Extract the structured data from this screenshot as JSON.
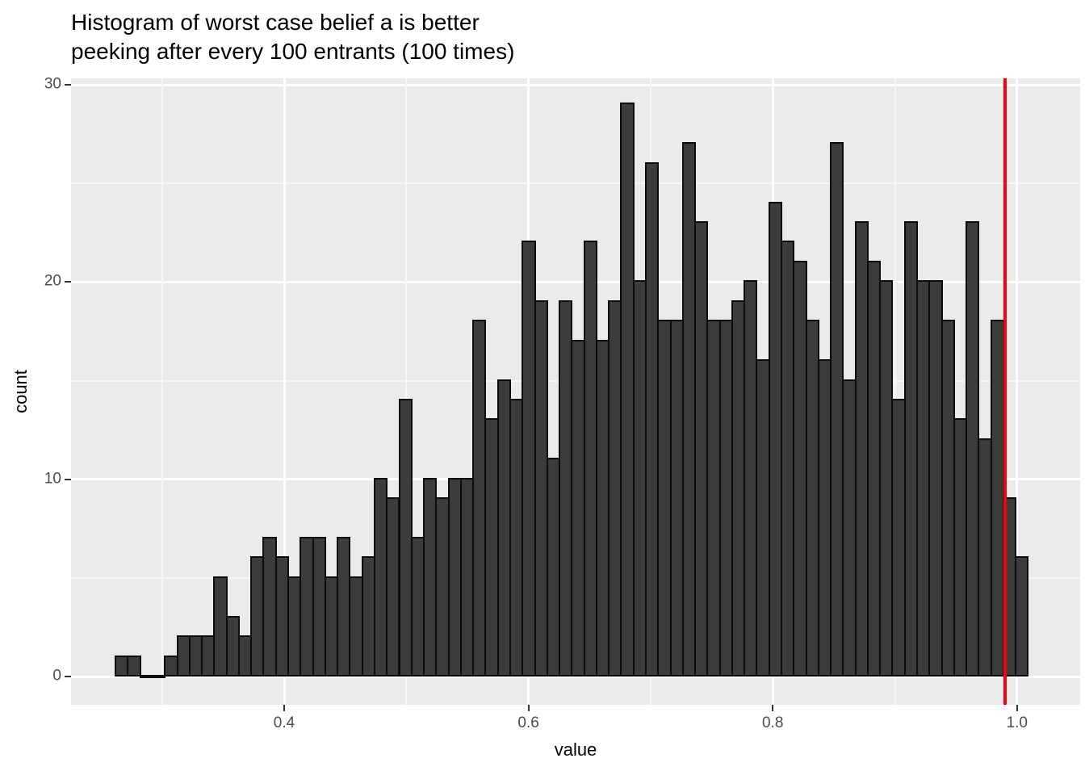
{
  "title": {
    "line1": "Histogram of worst case belief a is better",
    "line2": "peeking after every 100 entrants (100 times)"
  },
  "chart_data": {
    "type": "bar",
    "subtype": "histogram",
    "title": "Histogram of worst case belief a is better\npeeking after every 100 entrants (100 times)",
    "xlabel": "value",
    "ylabel": "count",
    "x_tick_labels": [
      "0.4",
      "0.6",
      "0.8",
      "1.0"
    ],
    "x_ticks": [
      0.4,
      0.6,
      0.8,
      1.0
    ],
    "x_minor_ticks": [
      0.3,
      0.5,
      0.7,
      0.9
    ],
    "y_tick_labels": [
      "0",
      "10",
      "20",
      "30"
    ],
    "y_ticks": [
      0,
      10,
      20,
      30
    ],
    "y_minor_ticks": [
      5,
      15,
      25
    ],
    "xlim": [
      0.2255,
      1.0517
    ],
    "ylim": [
      -1.45,
      30.45
    ],
    "grid": "on",
    "bin_start": 0.262,
    "bin_width": 0.010095,
    "counts": [
      1,
      1,
      0,
      0,
      1,
      2,
      2,
      2,
      5,
      3,
      2,
      6,
      7,
      6,
      5,
      7,
      7,
      5,
      7,
      5,
      6,
      10,
      9,
      14,
      7,
      10,
      9,
      10,
      10,
      18,
      13,
      15,
      14,
      22,
      19,
      11,
      19,
      17,
      22,
      17,
      19,
      29,
      20,
      26,
      18,
      18,
      27,
      23,
      18,
      18,
      19,
      20,
      16,
      24,
      22,
      21,
      18,
      16,
      27,
      15,
      23,
      21,
      20,
      14,
      23,
      20,
      20,
      18,
      13,
      23,
      12,
      18,
      9,
      6
    ],
    "reference_line_x": 0.99
  },
  "style": {
    "panel_bg": "#EBEBEB",
    "grid_major": "#FFFFFF",
    "grid_minor": "#F7F7F7",
    "bar_fill": "#3C3C3C",
    "bar_stroke": "#0D0D0D",
    "reference_line_color": "#FB0006",
    "tick_label_color": "#4D4D4D",
    "axis_title_color": "#000000",
    "title_color": "#000000"
  }
}
